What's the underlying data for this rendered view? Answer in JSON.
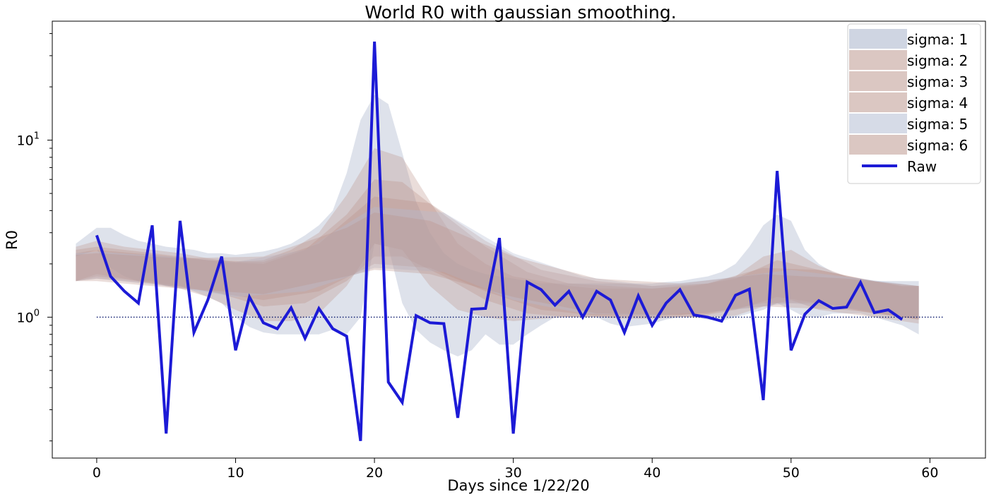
{
  "chart_data": {
    "type": "line",
    "title": "World R0 with gaussian smoothing.",
    "xlabel": "Days since 1/22/20",
    "ylabel": "R0",
    "xlim": [
      -3.2,
      64
    ],
    "ylim": [
      0.16,
      47
    ],
    "yscale": "log",
    "x_ticks": [
      0,
      10,
      20,
      30,
      40,
      50,
      60
    ],
    "x_tick_labels": [
      "0",
      "10",
      "20",
      "30",
      "40",
      "50",
      "60"
    ],
    "y_major_ticks": [
      1,
      10
    ],
    "y_major_tick_labels": [
      "10",
      "10"
    ],
    "y_major_tick_exponents": [
      "0",
      "1"
    ],
    "y_minor_ticks": [
      0.2,
      0.3,
      0.4,
      0.5,
      0.6,
      0.7,
      0.8,
      0.9,
      2,
      3,
      4,
      5,
      6,
      7,
      8,
      9,
      20,
      30,
      40
    ],
    "grid": false,
    "legend_position": "top-right",
    "reference_line": {
      "y": 1,
      "x_range": [
        0,
        61
      ],
      "style": "dotted",
      "color": "#0b1a6e"
    },
    "series": [
      {
        "name": "sigma: 1",
        "kind": "band",
        "color": "#b5bed3",
        "opacity": 0.45,
        "x": [
          -1.5,
          0,
          1,
          2,
          3,
          4,
          5,
          6,
          7,
          8,
          9,
          10,
          11,
          12,
          13,
          14,
          15,
          16,
          17,
          18,
          19,
          20,
          21,
          22,
          23,
          24,
          25,
          26,
          27,
          28,
          29,
          30,
          31,
          32,
          33,
          34,
          35,
          36,
          37,
          38,
          39,
          40,
          41,
          42,
          43,
          44,
          45,
          46,
          47,
          48,
          49,
          50,
          51,
          52,
          53,
          54,
          55,
          56,
          57,
          58,
          59.2
        ],
        "lower": [
          2.2,
          2.4,
          1.9,
          1.7,
          1.6,
          1.6,
          1.5,
          1.5,
          1.4,
          1.3,
          1.2,
          1.0,
          0.88,
          0.82,
          0.8,
          0.8,
          0.8,
          0.8,
          0.85,
          0.8,
          1.0,
          2.6,
          2.5,
          1.2,
          0.85,
          0.72,
          0.65,
          0.6,
          0.65,
          0.8,
          0.7,
          0.7,
          0.8,
          0.9,
          1.0,
          1.0,
          1.0,
          1.0,
          0.92,
          0.88,
          0.9,
          0.92,
          0.97,
          1.0,
          1.0,
          0.97,
          0.95,
          1.0,
          1.05,
          1.1,
          1.2,
          1.1,
          1.0,
          1.0,
          1.05,
          1.05,
          1.05,
          1.0,
          0.95,
          0.9,
          0.8
        ],
        "upper": [
          2.6,
          3.2,
          3.2,
          2.9,
          2.7,
          2.6,
          2.5,
          2.45,
          2.4,
          2.3,
          2.3,
          2.25,
          2.3,
          2.35,
          2.45,
          2.6,
          2.9,
          3.3,
          4.0,
          6.5,
          13.0,
          18.0,
          16.0,
          8.5,
          4.5,
          3.0,
          2.3,
          2.0,
          1.85,
          1.75,
          1.7,
          1.65,
          1.6,
          1.55,
          1.55,
          1.55,
          1.55,
          1.55,
          1.55,
          1.55,
          1.55,
          1.55,
          1.58,
          1.6,
          1.65,
          1.7,
          1.8,
          2.0,
          2.5,
          3.3,
          3.8,
          3.5,
          2.4,
          2.0,
          1.8,
          1.7,
          1.65,
          1.6,
          1.6,
          1.6,
          1.6
        ]
      },
      {
        "name": "sigma: 2",
        "kind": "band",
        "color": "#b88f85",
        "opacity": 0.3,
        "x": [
          -1.5,
          0,
          2,
          4,
          6,
          8,
          10,
          12,
          14,
          16,
          18,
          20,
          22,
          24,
          26,
          28,
          30,
          32,
          34,
          36,
          38,
          40,
          42,
          44,
          46,
          48,
          50,
          52,
          54,
          56,
          58,
          59.2
        ],
        "lower": [
          1.6,
          1.75,
          1.65,
          1.55,
          1.45,
          1.3,
          1.1,
          0.95,
          0.95,
          1.05,
          1.5,
          2.6,
          2.4,
          1.5,
          1.1,
          1.0,
          0.95,
          0.98,
          1.0,
          1.0,
          0.98,
          0.98,
          1.0,
          1.0,
          1.02,
          1.15,
          1.25,
          1.1,
          1.05,
          1.0,
          0.95,
          0.92
        ],
        "upper": [
          2.5,
          2.7,
          2.5,
          2.4,
          2.3,
          2.15,
          2.05,
          2.1,
          2.4,
          3.0,
          4.9,
          9.0,
          8.0,
          4.5,
          2.6,
          2.0,
          1.7,
          1.6,
          1.5,
          1.45,
          1.45,
          1.45,
          1.5,
          1.55,
          1.7,
          2.2,
          2.4,
          1.95,
          1.7,
          1.6,
          1.5,
          1.5
        ]
      },
      {
        "name": "sigma: 3",
        "kind": "band",
        "color": "#b88f85",
        "opacity": 0.3,
        "x": [
          -1.5,
          0,
          3,
          6,
          9,
          12,
          15,
          18,
          20,
          22,
          25,
          28,
          31,
          34,
          37,
          40,
          43,
          46,
          49,
          52,
          55,
          58,
          59.2
        ],
        "lower": [
          1.6,
          1.7,
          1.6,
          1.5,
          1.35,
          1.15,
          1.2,
          1.6,
          2.2,
          2.2,
          1.7,
          1.25,
          1.05,
          1.0,
          1.0,
          1.0,
          1.0,
          1.1,
          1.3,
          1.2,
          1.1,
          1.0,
          0.97
        ],
        "upper": [
          2.4,
          2.5,
          2.35,
          2.2,
          2.05,
          2.0,
          2.4,
          3.8,
          6.0,
          5.8,
          3.8,
          2.5,
          1.8,
          1.55,
          1.5,
          1.45,
          1.5,
          1.65,
          2.1,
          1.85,
          1.65,
          1.5,
          1.5
        ]
      },
      {
        "name": "sigma: 4",
        "kind": "band",
        "color": "#b88f85",
        "opacity": 0.3,
        "x": [
          -1.5,
          0,
          4,
          8,
          12,
          16,
          20,
          24,
          28,
          32,
          36,
          40,
          44,
          48,
          52,
          56,
          59.2
        ],
        "lower": [
          1.6,
          1.65,
          1.55,
          1.4,
          1.25,
          1.4,
          2.0,
          1.9,
          1.4,
          1.1,
          1.02,
          1.02,
          1.05,
          1.2,
          1.2,
          1.05,
          0.97
        ],
        "upper": [
          2.3,
          2.4,
          2.25,
          2.1,
          2.05,
          2.6,
          4.8,
          4.4,
          2.7,
          1.85,
          1.6,
          1.5,
          1.55,
          1.9,
          1.85,
          1.6,
          1.5
        ]
      },
      {
        "name": "sigma: 5",
        "kind": "band",
        "color": "#b5bed3",
        "opacity": 0.35,
        "x": [
          -1.5,
          0,
          5,
          10,
          15,
          20,
          25,
          30,
          35,
          40,
          45,
          50,
          55,
          59.2
        ],
        "lower": [
          1.6,
          1.65,
          1.5,
          1.3,
          1.4,
          1.9,
          1.8,
          1.25,
          1.05,
          1.02,
          1.08,
          1.2,
          1.1,
          0.98
        ],
        "upper": [
          2.3,
          2.35,
          2.2,
          2.05,
          2.4,
          4.2,
          3.9,
          2.3,
          1.7,
          1.5,
          1.65,
          1.85,
          1.65,
          1.5
        ]
      },
      {
        "name": "sigma: 6",
        "kind": "band",
        "color": "#b88f85",
        "opacity": 0.3,
        "x": [
          -1.5,
          0,
          6,
          12,
          18,
          20,
          24,
          30,
          36,
          42,
          48,
          54,
          59.2
        ],
        "lower": [
          1.6,
          1.6,
          1.45,
          1.35,
          1.7,
          1.85,
          1.75,
          1.3,
          1.05,
          1.03,
          1.15,
          1.1,
          0.98
        ],
        "upper": [
          2.25,
          2.3,
          2.15,
          2.2,
          3.2,
          3.9,
          3.5,
          2.2,
          1.65,
          1.55,
          1.75,
          1.65,
          1.5
        ]
      },
      {
        "name": "Raw",
        "kind": "line",
        "color": "#1c1ad6",
        "x": [
          0,
          1,
          2,
          3,
          4,
          5,
          6,
          7,
          8,
          9,
          10,
          11,
          12,
          13,
          14,
          15,
          16,
          17,
          18,
          19,
          20,
          21,
          22,
          23,
          24,
          25,
          26,
          27,
          28,
          29,
          30,
          31,
          32,
          33,
          34,
          35,
          36,
          37,
          38,
          39,
          40,
          41,
          42,
          43,
          44,
          45,
          46,
          47,
          48,
          49,
          50,
          51,
          52,
          53,
          54,
          55,
          56,
          57,
          58
        ],
        "values": [
          2.9,
          1.7,
          1.4,
          1.2,
          3.3,
          0.22,
          3.5,
          0.82,
          1.25,
          2.2,
          0.65,
          1.3,
          0.93,
          0.86,
          1.13,
          0.76,
          1.12,
          0.86,
          0.78,
          0.2,
          36,
          0.43,
          0.33,
          1.02,
          0.93,
          0.92,
          0.27,
          1.11,
          1.12,
          2.8,
          0.22,
          1.58,
          1.43,
          1.17,
          1.4,
          1.0,
          1.4,
          1.25,
          0.82,
          1.32,
          0.9,
          1.2,
          1.43,
          1.03,
          1.0,
          0.95,
          1.33,
          1.44,
          0.34,
          6.7,
          0.65,
          1.04,
          1.24,
          1.12,
          1.14,
          1.57,
          1.06,
          1.1,
          0.97
        ]
      }
    ]
  }
}
